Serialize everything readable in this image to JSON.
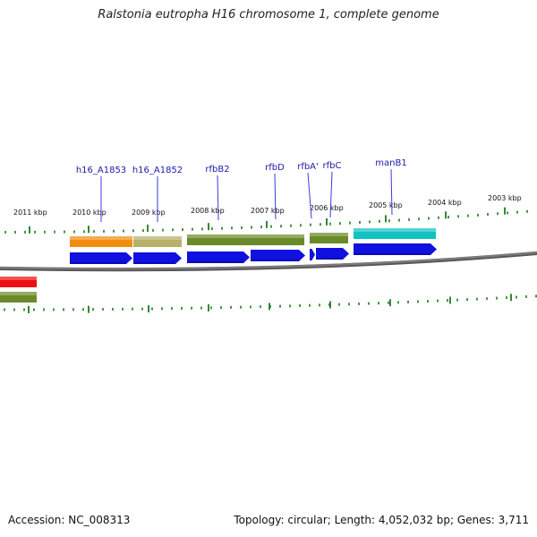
{
  "header": {
    "title": "Ralstonia eutropha H16 chromosome 1, complete genome"
  },
  "footer": {
    "accession": "Accession: NC_008313",
    "summary": "Topology: circular; Length: 4,052,032 bp; Genes: 3,711"
  },
  "colors": {
    "backbone": "#7a7a7a",
    "tick": "#1e7a1e",
    "label_line": "#3a3ae0",
    "gene_label": "#1a1aa8",
    "cds_arrow": "#1010e0",
    "feature_orange": "#f28c10",
    "feature_khaki": "#b7b06a",
    "feature_olive": "#6b8a2a",
    "feature_cyan": "#10c2c2",
    "feature_red": "#ee1010"
  },
  "kbp_ticks": [
    "2011 kbp",
    "2010 kbp",
    "2009 kbp",
    "2008 kbp",
    "2007 kbp",
    "2006 kbp",
    "2005 kbp",
    "2004 kbp",
    "2003 kbp"
  ],
  "gene_labels": [
    "h16_A1853",
    "h16_A1852",
    "rfbB2",
    "rfbD",
    "rfbA'",
    "rfbC",
    "manB1"
  ]
}
